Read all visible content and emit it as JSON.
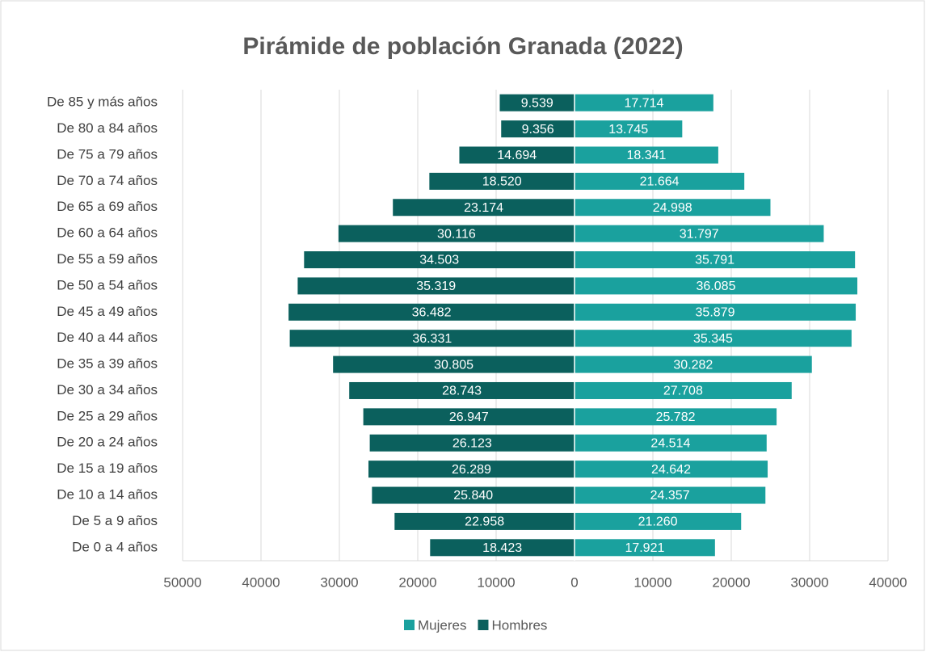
{
  "chart_data": {
    "type": "bar",
    "orientation": "horizontal",
    "stacked": true,
    "title": "Pirámide de población Granada (2022)",
    "categories": [
      "De 85 y más años",
      "De 80 a 84 años",
      "De 75 a 79 años",
      "De 70 a 74 años",
      "De 65 a 69 años",
      "De 60 a 64 años",
      "De 55 a 59 años",
      "De 50 a 54 años",
      "De 45 a 49 años",
      "De 40 a 44 años",
      "De 35 a 39 años",
      "De 30 a 34 años",
      "De 25 a 29 años",
      "De 20 a 24 años",
      "De 15 a 19 años",
      "De 10 a 14 años",
      "De 5 a 9 años",
      "De 0 a 4 años"
    ],
    "series": [
      {
        "name": "Mujeres",
        "color": "#1aa19e",
        "values": [
          17714,
          13745,
          18341,
          21664,
          24998,
          31797,
          35791,
          36085,
          35879,
          35345,
          30282,
          27708,
          25782,
          24514,
          24642,
          24357,
          21260,
          17921
        ],
        "value_labels": [
          "17.714",
          "13.745",
          "18.341",
          "21.664",
          "24.998",
          "31.797",
          "35.791",
          "36.085",
          "35.879",
          "35.345",
          "30.282",
          "27.708",
          "25.782",
          "24.514",
          "24.642",
          "24.357",
          "21.260",
          "17.921"
        ]
      },
      {
        "name": "Hombres",
        "color": "#0b605d",
        "values": [
          -9539,
          -9356,
          -14694,
          -18520,
          -23174,
          -30116,
          -34503,
          -35319,
          -36482,
          -36331,
          -30805,
          -28743,
          -26947,
          -26123,
          -26289,
          -25840,
          -22958,
          -18423
        ],
        "value_labels": [
          "9.539",
          "9.356",
          "14.694",
          "18.520",
          "23.174",
          "30.116",
          "34.503",
          "35.319",
          "36.482",
          "36.331",
          "30.805",
          "28.743",
          "26.947",
          "26.123",
          "26.289",
          "25.840",
          "22.958",
          "18.423"
        ]
      }
    ],
    "xlim": [
      -50000,
      40000
    ],
    "xticks": [
      {
        "value": -50000,
        "label": "50000"
      },
      {
        "value": -40000,
        "label": "40000"
      },
      {
        "value": -30000,
        "label": "30000"
      },
      {
        "value": -20000,
        "label": "20000"
      },
      {
        "value": -10000,
        "label": "10000"
      },
      0,
      10000,
      20000,
      30000,
      40000
    ],
    "grid": true,
    "legend": "bottom"
  }
}
